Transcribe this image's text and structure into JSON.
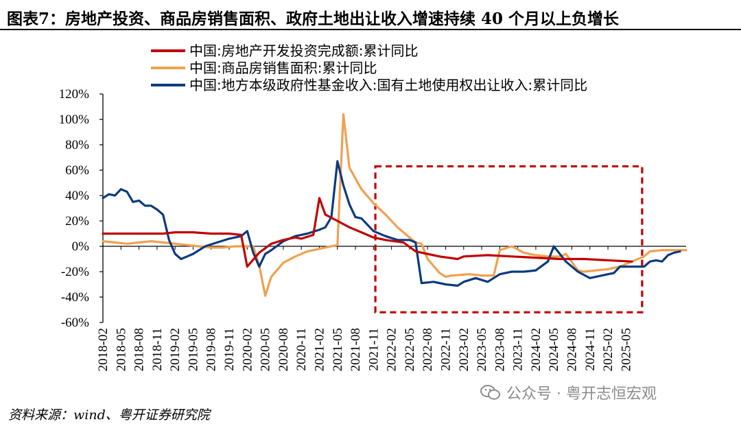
{
  "header": {
    "title": "图表7：房地产投资、商品房销售面积、政府土地出让收入增速持续 40 个月以上负增长"
  },
  "footer": {
    "source": "资料来源：wind、粤开证券研究院",
    "watermark": "公众号 · 粤开志恒宏观"
  },
  "chart_data": {
    "type": "line",
    "title": "图表7：房地产投资、商品房销售面积、政府土地出让收入增速持续 40 个月以上负增长",
    "xlabel": "",
    "ylabel": "",
    "ylim": [
      -60,
      120
    ],
    "yticks": [
      -60,
      -40,
      -20,
      0,
      20,
      40,
      60,
      80,
      100,
      120
    ],
    "ytick_labels": [
      "-60%",
      "-40%",
      "-20%",
      "0%",
      "20%",
      "40%",
      "60%",
      "80%",
      "100%",
      "120%"
    ],
    "xtick_labels": [
      "2018-02",
      "2018-05",
      "2018-08",
      "2018-11",
      "2019-02",
      "2019-05",
      "2019-08",
      "2019-11",
      "2020-02",
      "2020-05",
      "2020-08",
      "2020-11",
      "2021-02",
      "2021-05",
      "2021-08",
      "2021-11",
      "2022-02",
      "2022-05",
      "2022-08",
      "2022-11",
      "2023-02",
      "2023-05",
      "2023-08",
      "2023-11",
      "2024-02",
      "2024-05",
      "2024-08",
      "2024-11",
      "2025-02",
      "2025-05"
    ],
    "legend_position": "top",
    "highlight_box": {
      "from_period": "2021-12",
      "to_period": "2025-07",
      "ymin": -52,
      "ymax": 63,
      "color": "#c00000",
      "style": "dashed"
    },
    "series": [
      {
        "name": "中国:房地产开发投资完成额:累计同比",
        "color": "#c00000",
        "points": [
          [
            0,
            10
          ],
          [
            3,
            10
          ],
          [
            6,
            10
          ],
          [
            8,
            10
          ],
          [
            10,
            10
          ],
          [
            12,
            11
          ],
          [
            15,
            11
          ],
          [
            18,
            10
          ],
          [
            21,
            10
          ],
          [
            23,
            9
          ],
          [
            24,
            -16
          ],
          [
            26,
            -5
          ],
          [
            28,
            2
          ],
          [
            30,
            5
          ],
          [
            32,
            7
          ],
          [
            33,
            6
          ],
          [
            35,
            9
          ],
          [
            36,
            38
          ],
          [
            37,
            25
          ],
          [
            39,
            20
          ],
          [
            41,
            15
          ],
          [
            43,
            11
          ],
          [
            45,
            7
          ],
          [
            47,
            5
          ],
          [
            50,
            3
          ],
          [
            52,
            -4
          ],
          [
            56,
            -8
          ],
          [
            59,
            -10
          ],
          [
            60,
            -8
          ],
          [
            64,
            -7
          ],
          [
            68,
            -8
          ],
          [
            72,
            -9
          ],
          [
            76,
            -10
          ],
          [
            80,
            -10
          ],
          [
            84,
            -11
          ],
          [
            88,
            -12
          ]
        ]
      },
      {
        "name": "中国:商品房销售面积:累计同比",
        "color": "#f0a050",
        "points": [
          [
            0,
            4
          ],
          [
            2,
            3
          ],
          [
            4,
            2
          ],
          [
            6,
            3
          ],
          [
            8,
            4
          ],
          [
            10,
            3
          ],
          [
            12,
            2
          ],
          [
            14,
            1
          ],
          [
            16,
            0
          ],
          [
            18,
            -1
          ],
          [
            20,
            -1
          ],
          [
            22,
            0
          ],
          [
            24,
            0
          ],
          [
            25,
            0
          ],
          [
            26,
            -15
          ],
          [
            27,
            -39
          ],
          [
            28,
            -24
          ],
          [
            30,
            -13
          ],
          [
            32,
            -8
          ],
          [
            34,
            -4
          ],
          [
            36,
            -2
          ],
          [
            38,
            0
          ],
          [
            39,
            1
          ],
          [
            40,
            104
          ],
          [
            41,
            62
          ],
          [
            43,
            45
          ],
          [
            45,
            34
          ],
          [
            47,
            25
          ],
          [
            49,
            15
          ],
          [
            51,
            7
          ],
          [
            52,
            3
          ],
          [
            53,
            2
          ],
          [
            54,
            -10
          ],
          [
            56,
            -21
          ],
          [
            57,
            -24
          ],
          [
            58,
            -23
          ],
          [
            61,
            -22
          ],
          [
            63,
            -23
          ],
          [
            65,
            -23
          ],
          [
            66,
            -3
          ],
          [
            68,
            0
          ],
          [
            70,
            -5
          ],
          [
            72,
            -7
          ],
          [
            74,
            -8
          ],
          [
            76,
            -8
          ],
          [
            77,
            -6
          ],
          [
            79,
            -19
          ],
          [
            80,
            -20
          ],
          [
            82,
            -19
          ],
          [
            84,
            -18
          ],
          [
            86,
            -16
          ],
          [
            88,
            -12
          ],
          [
            90,
            -8
          ],
          [
            91,
            -4
          ],
          [
            93,
            -3
          ],
          [
            95,
            -3
          ],
          [
            97,
            -3
          ]
        ]
      },
      {
        "name": "中国:地方本级政府性基金收入:国有土地使用权出让收入:累计同比",
        "color": "#0b3a7e",
        "points": [
          [
            0,
            38
          ],
          [
            1,
            41
          ],
          [
            2,
            40
          ],
          [
            3,
            45
          ],
          [
            4,
            43
          ],
          [
            5,
            35
          ],
          [
            6,
            36
          ],
          [
            7,
            32
          ],
          [
            8,
            32
          ],
          [
            9,
            29
          ],
          [
            10,
            25
          ],
          [
            11,
            5
          ],
          [
            12,
            -6
          ],
          [
            13,
            -10
          ],
          [
            14,
            -8
          ],
          [
            15,
            -6
          ],
          [
            17,
            0
          ],
          [
            19,
            3
          ],
          [
            21,
            6
          ],
          [
            23,
            8
          ],
          [
            24,
            12
          ],
          [
            25,
            -5
          ],
          [
            26,
            -16
          ],
          [
            27,
            -6
          ],
          [
            28,
            -3
          ],
          [
            30,
            4
          ],
          [
            32,
            8
          ],
          [
            34,
            10
          ],
          [
            36,
            13
          ],
          [
            37,
            15
          ],
          [
            38,
            23
          ],
          [
            39,
            67
          ],
          [
            40,
            48
          ],
          [
            41,
            33
          ],
          [
            42,
            23
          ],
          [
            43,
            22
          ],
          [
            45,
            12
          ],
          [
            47,
            8
          ],
          [
            49,
            5
          ],
          [
            51,
            5
          ],
          [
            52,
            3
          ],
          [
            53,
            -29
          ],
          [
            55,
            -28
          ],
          [
            57,
            -30
          ],
          [
            59,
            -31
          ],
          [
            60,
            -28
          ],
          [
            62,
            -25
          ],
          [
            64,
            -28
          ],
          [
            66,
            -22
          ],
          [
            68,
            -20
          ],
          [
            70,
            -20
          ],
          [
            72,
            -19
          ],
          [
            74,
            -12
          ],
          [
            75,
            0
          ],
          [
            77,
            -12
          ],
          [
            79,
            -20
          ],
          [
            81,
            -25
          ],
          [
            83,
            -23
          ],
          [
            85,
            -21
          ],
          [
            86,
            -16
          ],
          [
            88,
            -16
          ],
          [
            90,
            -16
          ],
          [
            91,
            -12
          ],
          [
            92,
            -11
          ],
          [
            93,
            -12
          ],
          [
            94,
            -7
          ],
          [
            95,
            -5
          ],
          [
            96,
            -4
          ]
        ]
      }
    ]
  }
}
